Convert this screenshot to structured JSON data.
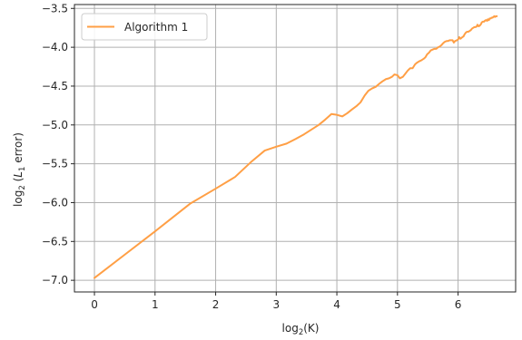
{
  "chart_data": {
    "type": "line",
    "xlabel_main": "log",
    "xlabel_sub": "2",
    "xlabel_paren": "(K)",
    "ylabel_main": "log",
    "ylabel_sub": "2",
    "ylabel_paren_open": " (",
    "ylabel_var": "L",
    "ylabel_var_sub": "1",
    "ylabel_rest": " error)",
    "xlim": [
      -0.33,
      6.95
    ],
    "ylim": [
      -7.15,
      -3.45
    ],
    "xticks": [
      0,
      1,
      2,
      3,
      4,
      5,
      6
    ],
    "xtick_labels": [
      "0",
      "1",
      "2",
      "3",
      "4",
      "5",
      "6"
    ],
    "yticks": [
      -3.5,
      -4.0,
      -4.5,
      -5.0,
      -5.5,
      -6.0,
      -6.5,
      -7.0
    ],
    "ytick_labels": [
      "−3.5",
      "−4.0",
      "−4.5",
      "−5.0",
      "−5.5",
      "−6.0",
      "−6.5",
      "−7.0"
    ],
    "grid": true,
    "legend_placement": "upper-left",
    "series": [
      {
        "name": "Algorithm 1",
        "color": "#ff9f45",
        "x": [
          0,
          0.5,
          1.0,
          1.585,
          2.0,
          2.32,
          2.58,
          2.81,
          3.0,
          3.17,
          3.32,
          3.46,
          3.58,
          3.7,
          3.81,
          3.91,
          4.0,
          4.09,
          4.17,
          4.25,
          4.32,
          4.39,
          4.46,
          4.52,
          4.58,
          4.64,
          4.7,
          4.75,
          4.81,
          4.86,
          4.91,
          4.95,
          5.0,
          5.04,
          5.09,
          5.13,
          5.17,
          5.21,
          5.25,
          5.29,
          5.32,
          5.36,
          5.39,
          5.43,
          5.46,
          5.49,
          5.52,
          5.55,
          5.58,
          5.61,
          5.64,
          5.67,
          5.7,
          5.73,
          5.75,
          5.78,
          5.81,
          5.83,
          5.86,
          5.88,
          5.91,
          5.93,
          5.95,
          5.98,
          6.0,
          6.02,
          6.04,
          6.07,
          6.09,
          6.11,
          6.13,
          6.15,
          6.17,
          6.19,
          6.21,
          6.23,
          6.25,
          6.27,
          6.29,
          6.31,
          6.32,
          6.34,
          6.36,
          6.38,
          6.39,
          6.41,
          6.43,
          6.44,
          6.46,
          6.48,
          6.49,
          6.51,
          6.52,
          6.54,
          6.55,
          6.57,
          6.58,
          6.6,
          6.61,
          6.63,
          6.64
        ],
        "y": [
          -6.97,
          -6.67,
          -6.37,
          -6.01,
          -5.82,
          -5.67,
          -5.48,
          -5.33,
          -5.28,
          -5.24,
          -5.18,
          -5.12,
          -5.06,
          -5.0,
          -4.93,
          -4.86,
          -4.87,
          -4.89,
          -4.85,
          -4.8,
          -4.76,
          -4.71,
          -4.62,
          -4.56,
          -4.53,
          -4.51,
          -4.47,
          -4.44,
          -4.41,
          -4.4,
          -4.38,
          -4.35,
          -4.36,
          -4.4,
          -4.38,
          -4.34,
          -4.3,
          -4.27,
          -4.27,
          -4.22,
          -4.2,
          -4.18,
          -4.17,
          -4.15,
          -4.13,
          -4.09,
          -4.07,
          -4.04,
          -4.03,
          -4.02,
          -4.02,
          -4.0,
          -3.99,
          -3.97,
          -3.95,
          -3.93,
          -3.92,
          -3.92,
          -3.91,
          -3.91,
          -3.91,
          -3.94,
          -3.92,
          -3.91,
          -3.9,
          -3.87,
          -3.89,
          -3.87,
          -3.86,
          -3.83,
          -3.81,
          -3.8,
          -3.8,
          -3.79,
          -3.78,
          -3.76,
          -3.75,
          -3.74,
          -3.74,
          -3.73,
          -3.71,
          -3.73,
          -3.72,
          -3.7,
          -3.68,
          -3.67,
          -3.67,
          -3.66,
          -3.65,
          -3.66,
          -3.64,
          -3.65,
          -3.63,
          -3.63,
          -3.62,
          -3.62,
          -3.61,
          -3.6,
          -3.61,
          -3.6,
          -3.6
        ]
      }
    ]
  }
}
